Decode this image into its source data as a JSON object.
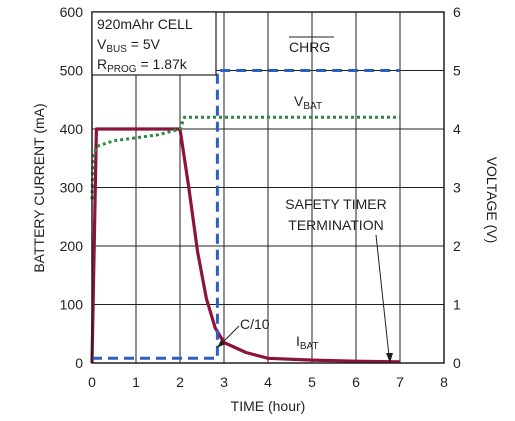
{
  "chart_data": {
    "type": "line",
    "x_axis": {
      "label": "TIME (hour)",
      "range": [
        0,
        8
      ],
      "ticks": [
        "0",
        "1",
        "2",
        "3",
        "4",
        "5",
        "6",
        "7",
        "8"
      ]
    },
    "y_axis_left": {
      "label": "BATTERY CURRENT (mA)",
      "range": [
        0,
        600
      ],
      "ticks": [
        "0",
        "100",
        "200",
        "300",
        "400",
        "500",
        "600"
      ]
    },
    "y_axis_right": {
      "label": "VOLTAGE (V)",
      "range": [
        0,
        6
      ],
      "ticks": [
        "0",
        "1",
        "2",
        "3",
        "4",
        "5",
        "6"
      ]
    },
    "grid": true,
    "info_box": {
      "line1": "920mAhr CELL",
      "vbus_main": "V",
      "vbus_sub": "BUS",
      "vbus_rest": " = 5V",
      "rprog_main": "R",
      "rprog_sub": "PROG",
      "rprog_rest": " = 1.87k"
    },
    "annotations": {
      "chrg": "CHRG",
      "vbat_main": "V",
      "vbat_sub": "BAT",
      "ibat_main": "I",
      "ibat_sub": "BAT",
      "c10": "C/10",
      "safety_line1": "SAFETY TIMER",
      "safety_line2": "TERMINATION"
    },
    "series": [
      {
        "axis": "left",
        "color": "#8b1438",
        "style": "solid",
        "points": [
          [
            0,
            0
          ],
          [
            0.1,
            400
          ],
          [
            2,
            400
          ],
          [
            2.2,
            300
          ],
          [
            2.4,
            190
          ],
          [
            2.6,
            110
          ],
          [
            2.8,
            60
          ],
          [
            3,
            35
          ],
          [
            3.5,
            18
          ],
          [
            4,
            8
          ],
          [
            5,
            5
          ],
          [
            6,
            3
          ],
          [
            7,
            2
          ]
        ]
      },
      {
        "axis": "right",
        "color": "#2b8a3e",
        "style": "dotted",
        "points": [
          [
            0,
            2.8
          ],
          [
            0.02,
            3.5
          ],
          [
            0.1,
            3.7
          ],
          [
            0.5,
            3.8
          ],
          [
            1,
            3.85
          ],
          [
            1.5,
            3.9
          ],
          [
            2,
            4.0
          ],
          [
            2.1,
            4.2
          ],
          [
            7,
            4.2
          ]
        ]
      },
      {
        "axis": "right",
        "color": "#2b5fc4",
        "style": "dashed",
        "points": [
          [
            0,
            0.08
          ],
          [
            2.85,
            0.08
          ],
          [
            2.85,
            5
          ],
          [
            7,
            5
          ]
        ]
      }
    ]
  }
}
